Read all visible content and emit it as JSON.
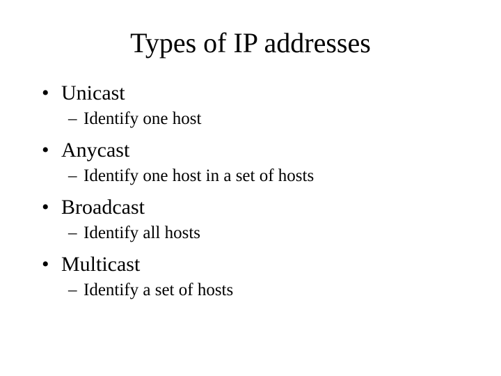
{
  "title": "Types of IP addresses",
  "items": [
    {
      "label": "Unicast",
      "sub": "Identify one host"
    },
    {
      "label": "Anycast",
      "sub": "Identify one host in a set of hosts"
    },
    {
      "label": "Broadcast",
      "sub": "Identify all hosts"
    },
    {
      "label": "Multicast",
      "sub": "Identify a set of hosts"
    }
  ],
  "style": {
    "background_color": "#ffffff",
    "text_color": "#000000",
    "font_family": "Times New Roman",
    "title_fontsize": 40,
    "level1_fontsize": 30,
    "level2_fontsize": 25,
    "bullet_char": "•",
    "dash_char": "–"
  }
}
